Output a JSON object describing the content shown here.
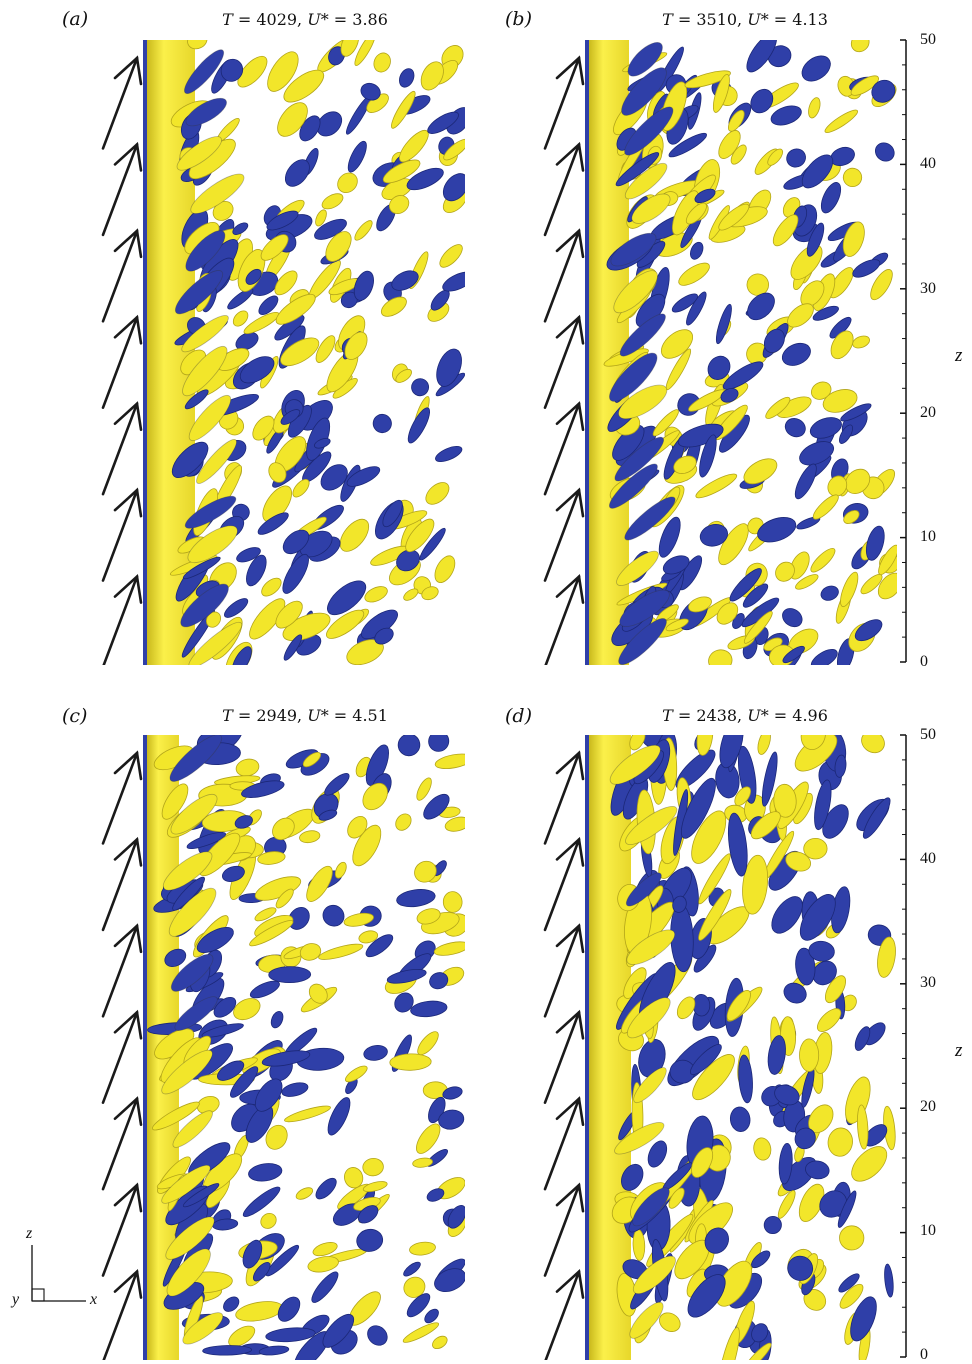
{
  "panels": [
    {
      "label": "(a)",
      "title_T": "4029",
      "title_U": "3.86"
    },
    {
      "label": "(b)",
      "title_T": "3510",
      "title_U": "4.13"
    },
    {
      "label": "(c)",
      "title_T": "2949",
      "title_U": "4.51"
    },
    {
      "label": "(d)",
      "title_T": "2438",
      "title_U": "4.96"
    }
  ],
  "axis": {
    "label": "z",
    "ticks": [
      "0",
      "10",
      "20",
      "30",
      "40",
      "50"
    ]
  },
  "triad": {
    "x": "x",
    "y": "y",
    "z": "z"
  },
  "colors": {
    "positive": "#f2e62a",
    "negative": "#2f3fa8",
    "arrow": "#1a1a1a"
  }
}
